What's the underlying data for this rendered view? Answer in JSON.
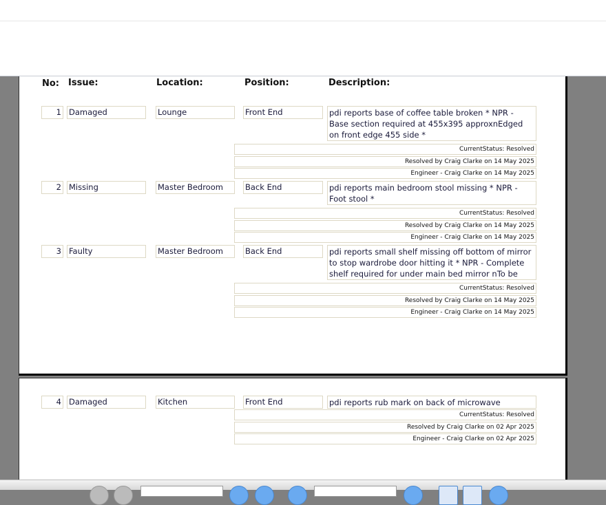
{
  "headers": {
    "no": "No:",
    "issue": "Issue:",
    "location": "Location:",
    "position": "Position:",
    "description": "Description:"
  },
  "rows": [
    {
      "no": "1",
      "issue": "Damaged",
      "location": "Lounge",
      "position": "Front End",
      "description": "pdi reports base of coffee table broken * NPR - Base section required at 455x395 approxnEdged on front edge 455 side *",
      "status": "CurrentStatus: Resolved",
      "resolved": "Resolved by Craig Clarke on 14 May 2025",
      "engineer": "Engineer - Craig Clarke on 14 May 2025"
    },
    {
      "no": "2",
      "issue": "Missing",
      "location": "Master Bedroom",
      "position": "Back End",
      "description": "pdi reports main bedroom stool missing * NPR - Foot stool *",
      "status": "CurrentStatus: Resolved",
      "resolved": "Resolved by Craig Clarke on 14 May 2025",
      "engineer": "Engineer - Craig Clarke on 14 May 2025"
    },
    {
      "no": "3",
      "issue": "Faulty",
      "location": "Master Bedroom",
      "position": "Back End",
      "description": "pdi reports small shelf missing off bottom of mirror to stop wardrobe door hitting it * NPR - Complete shelf required for under main bed mirror nTo be made up *",
      "status": "CurrentStatus: Resolved",
      "resolved": "Resolved by Craig Clarke on 14 May 2025",
      "engineer": "Engineer - Craig Clarke on 14 May 2025"
    },
    {
      "no": "4",
      "issue": "Damaged",
      "location": "Kitchen",
      "position": "Front End",
      "description": "pdi reports rub mark on back of microwave",
      "status": "CurrentStatus: Resolved",
      "resolved": "Resolved by Craig Clarke on 02 Apr 2025",
      "engineer": "Engineer - Craig Clarke on 02 Apr 2025"
    }
  ]
}
